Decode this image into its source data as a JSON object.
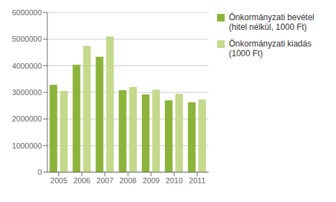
{
  "chart_data": {
    "type": "bar",
    "categories": [
      "2005",
      "2006",
      "2007",
      "2008",
      "2009",
      "2010",
      "2011"
    ],
    "series": [
      {
        "name": "Önkormányzati bevétel\n(hitel nélkül, 1000 Ft)",
        "color": "#8CB43A",
        "values": [
          3280000,
          4040000,
          4340000,
          3080000,
          2920000,
          2700000,
          2630000
        ]
      },
      {
        "name": "Önkormányzati kiadás\n(1000 Ft)",
        "color": "#C5D98C",
        "values": [
          3050000,
          4750000,
          5100000,
          3200000,
          3100000,
          2950000,
          2730000
        ]
      }
    ],
    "ylim": [
      0,
      6000000
    ],
    "yticks": [
      0,
      1000000,
      2000000,
      3000000,
      4000000,
      5000000,
      6000000
    ],
    "grid": true,
    "legend": "right"
  }
}
